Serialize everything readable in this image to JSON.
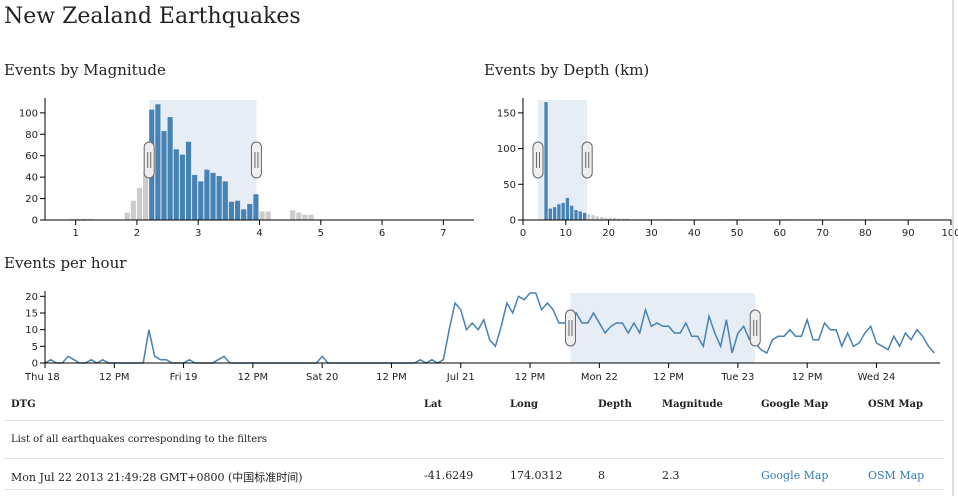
{
  "page": {
    "title": "New Zealand Earthquakes"
  },
  "panels": {
    "magnitude_title": "Events by Magnitude",
    "depth_title": "Events by Depth (km)",
    "hour_title": "Events per hour"
  },
  "chart_data": [
    {
      "type": "bar",
      "name_printed": "Events by Magnitude",
      "bin_width": 0.1,
      "x": [
        0.9,
        1.0,
        1.1,
        1.2,
        1.8,
        1.9,
        2.0,
        2.1,
        2.2,
        2.3,
        2.4,
        2.5,
        2.6,
        2.7,
        2.8,
        2.9,
        3.0,
        3.1,
        3.2,
        3.3,
        3.4,
        3.5,
        3.6,
        3.7,
        3.8,
        3.9,
        4.0,
        4.1,
        4.5,
        4.6,
        4.7,
        4.8
      ],
      "values": [
        1,
        1,
        1,
        1,
        7,
        18,
        30,
        45,
        103,
        108,
        83,
        96,
        66,
        61,
        73,
        42,
        36,
        47,
        44,
        41,
        36,
        17,
        18,
        10,
        15,
        24,
        8,
        8,
        9,
        7,
        5,
        5
      ],
      "brush": [
        2.2,
        3.95
      ],
      "xlim": [
        0.5,
        7.5
      ],
      "ylim": [
        0,
        112
      ],
      "xticks": [
        "1",
        "2",
        "3",
        "4",
        "5",
        "6",
        "7"
      ],
      "yticks": [
        "0",
        "20",
        "40",
        "60",
        "80",
        "100"
      ]
    },
    {
      "type": "bar",
      "name_printed": "Events by Depth (km)",
      "bin_width": 1,
      "x": [
        5,
        6,
        7,
        8,
        9,
        10,
        11,
        12,
        13,
        14,
        15,
        16,
        17,
        18,
        19,
        20,
        21,
        22,
        23,
        24,
        25,
        26,
        27,
        28,
        29,
        30,
        31,
        32,
        33,
        34,
        35,
        36,
        37,
        38,
        39,
        40,
        41,
        42,
        43,
        44,
        45,
        46,
        47,
        48,
        49,
        50,
        51,
        52,
        53,
        54,
        55,
        56,
        57,
        58,
        59,
        60,
        61,
        62,
        63,
        64,
        65,
        66,
        67,
        68,
        69,
        70,
        71,
        72,
        73,
        74,
        75,
        76,
        77,
        78,
        79,
        80,
        81,
        82,
        83,
        84,
        85,
        86,
        87,
        88,
        89,
        90,
        91,
        92,
        93,
        94,
        95,
        96,
        97,
        98,
        99,
        100
      ],
      "values": [
        165,
        16,
        18,
        22,
        24,
        31,
        20,
        14,
        12,
        10,
        8,
        7,
        5,
        4,
        3,
        3,
        3,
        2,
        2,
        2,
        1,
        1,
        1,
        1,
        1,
        1,
        1,
        1,
        1,
        1,
        1,
        1,
        1,
        1,
        1,
        1,
        1,
        1,
        1,
        1,
        1,
        1,
        1,
        1,
        1,
        1,
        1,
        1,
        1,
        1,
        1,
        1,
        1,
        1,
        1,
        1,
        1,
        1,
        1,
        1,
        1,
        1,
        1,
        1,
        1,
        1,
        1,
        1,
        1,
        1,
        1,
        1,
        1,
        1,
        1,
        1,
        1,
        1,
        1,
        1,
        1,
        1,
        1,
        1,
        1,
        1,
        1,
        1,
        1,
        1,
        1,
        1,
        1,
        1,
        1,
        1
      ],
      "brush": [
        3.5,
        15
      ],
      "xlim": [
        0,
        100
      ],
      "ylim": [
        0,
        168
      ],
      "xticks": [
        "0",
        "10",
        "20",
        "30",
        "40",
        "50",
        "60",
        "70",
        "80",
        "90",
        "100"
      ],
      "yticks": [
        "0",
        "50",
        "100",
        "150"
      ]
    },
    {
      "type": "line",
      "name_printed": "Events per hour",
      "x_unit": "hour",
      "values": [
        0,
        1,
        0,
        0,
        2,
        1,
        0,
        0,
        1,
        0,
        1,
        0,
        0,
        0,
        0,
        0,
        0,
        0,
        10,
        2,
        1,
        1,
        0,
        0,
        0,
        1,
        0,
        0,
        0,
        0,
        1,
        2,
        0,
        0,
        0,
        0,
        0,
        0,
        0,
        0,
        0,
        0,
        0,
        0,
        0,
        0,
        0,
        0,
        2,
        0,
        0,
        0,
        0,
        0,
        0,
        0,
        0,
        0,
        0,
        0,
        0,
        0,
        0,
        0,
        0,
        1,
        0,
        1,
        0,
        1,
        10,
        18,
        16,
        10,
        12,
        10,
        13,
        7,
        5,
        11,
        18,
        15,
        20,
        19,
        21,
        21,
        16,
        18,
        16,
        12,
        12,
        12,
        15,
        12,
        12,
        15,
        12,
        9,
        11,
        12,
        12,
        9,
        12,
        9,
        16,
        11,
        12,
        11,
        11,
        9,
        9,
        12,
        8,
        8,
        5,
        14,
        9,
        5,
        13,
        3,
        9,
        11,
        7,
        6,
        4,
        3,
        7,
        8,
        8,
        10,
        8,
        8,
        13,
        7,
        7,
        12,
        10,
        10,
        5,
        9,
        5,
        6,
        9,
        11,
        6,
        5,
        4,
        8,
        5,
        9,
        7,
        10,
        8,
        5,
        3
      ],
      "brush_hours": [
        91,
        123
      ],
      "xlim": [
        0,
        155
      ],
      "ylim": [
        0,
        21
      ],
      "xticks": [
        "Thu 18",
        "12 PM",
        "Fri 19",
        "12 PM",
        "Sat 20",
        "12 PM",
        "Jul 21",
        "12 PM",
        "Mon 22",
        "12 PM",
        "Tue 23",
        "12 PM",
        "Wed 24"
      ],
      "yticks": [
        "0",
        "5",
        "10",
        "15",
        "20"
      ]
    }
  ],
  "table": {
    "headers": [
      "DTG",
      "Lat",
      "Long",
      "Depth",
      "Magnitude",
      "Google Map",
      "OSM Map"
    ],
    "caption": "List of all earthquakes corresponding to the filters",
    "rows": [
      {
        "dtg": "Mon Jul 22 2013 21:49:28 GMT+0800 (中国标准时间)",
        "lat": "-41.6249",
        "long": "174.0312",
        "depth": "8",
        "magnitude": "2.3",
        "google": "Google Map",
        "osm": "OSM Map"
      }
    ]
  },
  "colors": {
    "bar_selected": "#4682b4",
    "bar_unselected": "#cccccc",
    "brush": "#dfe7f0",
    "link": "#337ab7"
  }
}
